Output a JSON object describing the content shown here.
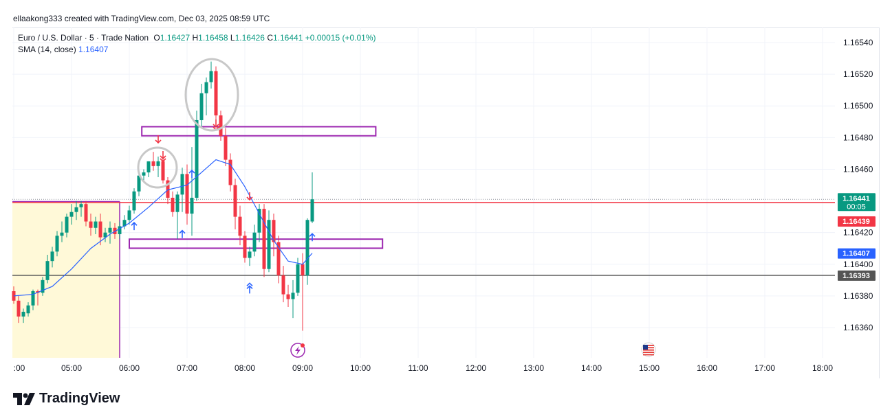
{
  "header": {
    "credit": "ellaakong333 created with TradingView.com, Dec 03, 2025 08:59 UTC"
  },
  "legend": {
    "symbol": "Euro / U.S. Dollar · 5 · Trade Nation",
    "o_label": "O",
    "o_value": "1.16427",
    "h_label": "H",
    "h_value": "1.16458",
    "l_label": "L",
    "l_value": "1.16426",
    "c_label": "C",
    "c_value": "1.16441",
    "change": "+0.00015 (+0.01%)",
    "sma_label": "SMA (14, close)",
    "sma_value": "1.16407"
  },
  "brand": {
    "name": "TradingView"
  },
  "colors": {
    "up": "#089981",
    "down": "#f23645",
    "sma": "#2962ff",
    "zone_rect": "#9c27b0",
    "highlight_fill": "#fff9d8",
    "level_red": "#f23645",
    "level_gray": "#555555",
    "circle": "#c8c8c8"
  },
  "chart_data": {
    "type": "candlestick",
    "symbol": "EURUSD",
    "timeframe": "5",
    "y_ticks": [
      "1.16540",
      "1.16520",
      "1.16500",
      "1.16480",
      "1.16460",
      "1.16420",
      "1.16400",
      "1.16380",
      "1.16360"
    ],
    "x_ticks": [
      ":00",
      "05:00",
      "06:00",
      "07:00",
      "08:00",
      "09:00",
      "10:00",
      "11:00",
      "12:00",
      "13:00",
      "14:00",
      "15:00",
      "16:00",
      "17:00",
      "18:00"
    ],
    "ylim": [
      1.1634,
      1.1656
    ],
    "price_labels": [
      {
        "value": 1.16441,
        "text": "1.16441",
        "sub": "00:05",
        "color": "#089981"
      },
      {
        "value": 1.16439,
        "text": "1.16439",
        "color": "#f23645"
      },
      {
        "value": 1.16407,
        "text": "1.16407",
        "color": "#2962ff"
      },
      {
        "value": 1.16393,
        "text": "1.16393",
        "color": "#555555"
      }
    ],
    "horizontal_lines": [
      {
        "value": 1.16439,
        "color": "#f23645"
      },
      {
        "value": 1.16393,
        "color": "#555555"
      }
    ],
    "zones": [
      {
        "from_time": "06:13",
        "to_time": "10:16",
        "low": 1.16482,
        "high": 1.16486
      },
      {
        "from_time": "06:00",
        "to_time": "10:23",
        "low": 1.16411,
        "high": 1.16415
      }
    ],
    "highlight": {
      "from_time": "03:55",
      "to_time": "05:55",
      "low": 1.1634,
      "high": 1.1644
    },
    "candles": [
      {
        "t": "04:00",
        "o": 1.16383,
        "h": 1.16386,
        "l": 1.16375,
        "c": 1.16377
      },
      {
        "t": "04:05",
        "o": 1.16377,
        "h": 1.1638,
        "l": 1.16363,
        "c": 1.16367
      },
      {
        "t": "04:10",
        "o": 1.16367,
        "h": 1.16372,
        "l": 1.16363,
        "c": 1.1637
      },
      {
        "t": "04:15",
        "o": 1.16369,
        "h": 1.16376,
        "l": 1.16367,
        "c": 1.16374
      },
      {
        "t": "04:20",
        "o": 1.16374,
        "h": 1.16384,
        "l": 1.16371,
        "c": 1.16383
      },
      {
        "t": "04:25",
        "o": 1.16383,
        "h": 1.16384,
        "l": 1.16374,
        "c": 1.16382
      },
      {
        "t": "04:30",
        "o": 1.16382,
        "h": 1.16392,
        "l": 1.1638,
        "c": 1.1639
      },
      {
        "t": "04:35",
        "o": 1.1639,
        "h": 1.16406,
        "l": 1.16388,
        "c": 1.16402
      },
      {
        "t": "04:40",
        "o": 1.16402,
        "h": 1.16411,
        "l": 1.16398,
        "c": 1.16408
      },
      {
        "t": "04:45",
        "o": 1.16408,
        "h": 1.16421,
        "l": 1.16405,
        "c": 1.16418
      },
      {
        "t": "04:50",
        "o": 1.16418,
        "h": 1.16427,
        "l": 1.16414,
        "c": 1.1642
      },
      {
        "t": "04:55",
        "o": 1.1642,
        "h": 1.16432,
        "l": 1.16417,
        "c": 1.1643
      },
      {
        "t": "05:00",
        "o": 1.1643,
        "h": 1.16438,
        "l": 1.16425,
        "c": 1.16433
      },
      {
        "t": "05:05",
        "o": 1.16433,
        "h": 1.1644,
        "l": 1.16428,
        "c": 1.16436
      },
      {
        "t": "05:10",
        "o": 1.16436,
        "h": 1.1644,
        "l": 1.1643,
        "c": 1.16438
      },
      {
        "t": "05:15",
        "o": 1.16438,
        "h": 1.1644,
        "l": 1.16424,
        "c": 1.16427
      },
      {
        "t": "05:20",
        "o": 1.16427,
        "h": 1.16432,
        "l": 1.16418,
        "c": 1.16423
      },
      {
        "t": "05:25",
        "o": 1.16423,
        "h": 1.1643,
        "l": 1.16419,
        "c": 1.16427
      },
      {
        "t": "05:30",
        "o": 1.16427,
        "h": 1.16432,
        "l": 1.16412,
        "c": 1.16417
      },
      {
        "t": "05:35",
        "o": 1.16417,
        "h": 1.16423,
        "l": 1.16414,
        "c": 1.1642
      },
      {
        "t": "05:40",
        "o": 1.1642,
        "h": 1.16427,
        "l": 1.16413,
        "c": 1.16423
      },
      {
        "t": "05:45",
        "o": 1.16423,
        "h": 1.16426,
        "l": 1.16416,
        "c": 1.16419
      },
      {
        "t": "05:50",
        "o": 1.16419,
        "h": 1.16427,
        "l": 1.16416,
        "c": 1.16424
      },
      {
        "t": "05:55",
        "o": 1.16424,
        "h": 1.16431,
        "l": 1.16422,
        "c": 1.16428
      },
      {
        "t": "06:00",
        "o": 1.16428,
        "h": 1.16437,
        "l": 1.16425,
        "c": 1.16434
      },
      {
        "t": "06:05",
        "o": 1.16434,
        "h": 1.16448,
        "l": 1.16432,
        "c": 1.16446
      },
      {
        "t": "06:10",
        "o": 1.16446,
        "h": 1.16458,
        "l": 1.16443,
        "c": 1.16456
      },
      {
        "t": "06:15",
        "o": 1.16456,
        "h": 1.1646,
        "l": 1.16452,
        "c": 1.16458
      },
      {
        "t": "06:20",
        "o": 1.16458,
        "h": 1.16465,
        "l": 1.16455,
        "c": 1.16465
      },
      {
        "t": "06:25",
        "o": 1.16465,
        "h": 1.16471,
        "l": 1.16459,
        "c": 1.16462
      },
      {
        "t": "06:30",
        "o": 1.16462,
        "h": 1.16468,
        "l": 1.16455,
        "c": 1.16465
      },
      {
        "t": "06:35",
        "o": 1.16465,
        "h": 1.1647,
        "l": 1.16451,
        "c": 1.16453
      },
      {
        "t": "06:40",
        "o": 1.16453,
        "h": 1.16455,
        "l": 1.16438,
        "c": 1.16442
      },
      {
        "t": "06:45",
        "o": 1.16442,
        "h": 1.16446,
        "l": 1.1643,
        "c": 1.16433
      },
      {
        "t": "06:50",
        "o": 1.16433,
        "h": 1.16446,
        "l": 1.16416,
        "c": 1.16444
      },
      {
        "t": "06:55",
        "o": 1.16444,
        "h": 1.16461,
        "l": 1.16433,
        "c": 1.16457
      },
      {
        "t": "07:00",
        "o": 1.16457,
        "h": 1.16463,
        "l": 1.16425,
        "c": 1.16432
      },
      {
        "t": "07:05",
        "o": 1.16432,
        "h": 1.16474,
        "l": 1.16418,
        "c": 1.16442
      },
      {
        "t": "07:10",
        "o": 1.16442,
        "h": 1.16497,
        "l": 1.1644,
        "c": 1.16491
      },
      {
        "t": "07:15",
        "o": 1.16491,
        "h": 1.16514,
        "l": 1.16487,
        "c": 1.16508
      },
      {
        "t": "07:20",
        "o": 1.16508,
        "h": 1.16518,
        "l": 1.16494,
        "c": 1.16515
      },
      {
        "t": "07:25",
        "o": 1.16515,
        "h": 1.16528,
        "l": 1.16511,
        "c": 1.16522
      },
      {
        "t": "07:30",
        "o": 1.16522,
        "h": 1.16525,
        "l": 1.1649,
        "c": 1.16494
      },
      {
        "t": "07:35",
        "o": 1.16494,
        "h": 1.16497,
        "l": 1.16478,
        "c": 1.16481
      },
      {
        "t": "07:40",
        "o": 1.16481,
        "h": 1.16486,
        "l": 1.16462,
        "c": 1.16466
      },
      {
        "t": "07:45",
        "o": 1.16466,
        "h": 1.1647,
        "l": 1.16446,
        "c": 1.1645
      },
      {
        "t": "07:50",
        "o": 1.1645,
        "h": 1.16454,
        "l": 1.16422,
        "c": 1.1643
      },
      {
        "t": "07:55",
        "o": 1.1643,
        "h": 1.16437,
        "l": 1.16412,
        "c": 1.16418
      },
      {
        "t": "08:00",
        "o": 1.16418,
        "h": 1.16421,
        "l": 1.16401,
        "c": 1.16404
      },
      {
        "t": "08:05",
        "o": 1.16404,
        "h": 1.16411,
        "l": 1.16399,
        "c": 1.16408
      },
      {
        "t": "08:10",
        "o": 1.16408,
        "h": 1.16425,
        "l": 1.16405,
        "c": 1.1642
      },
      {
        "t": "08:15",
        "o": 1.1642,
        "h": 1.16438,
        "l": 1.16414,
        "c": 1.16435
      },
      {
        "t": "08:20",
        "o": 1.16435,
        "h": 1.16438,
        "l": 1.16392,
        "c": 1.16397
      },
      {
        "t": "08:25",
        "o": 1.16397,
        "h": 1.16434,
        "l": 1.16395,
        "c": 1.16428
      },
      {
        "t": "08:30",
        "o": 1.16428,
        "h": 1.16432,
        "l": 1.16405,
        "c": 1.16414
      },
      {
        "t": "08:35",
        "o": 1.16414,
        "h": 1.16418,
        "l": 1.16388,
        "c": 1.16393
      },
      {
        "t": "08:40",
        "o": 1.16393,
        "h": 1.16399,
        "l": 1.16376,
        "c": 1.16381
      },
      {
        "t": "08:45",
        "o": 1.16381,
        "h": 1.16387,
        "l": 1.16373,
        "c": 1.16378
      },
      {
        "t": "08:50",
        "o": 1.16378,
        "h": 1.1639,
        "l": 1.16366,
        "c": 1.16382
      },
      {
        "t": "08:55",
        "o": 1.16382,
        "h": 1.16404,
        "l": 1.1638,
        "c": 1.164
      },
      {
        "t": "09:00",
        "o": 1.164,
        "h": 1.16407,
        "l": 1.16358,
        "c": 1.16393
      },
      {
        "t": "09:05",
        "o": 1.16393,
        "h": 1.16429,
        "l": 1.16387,
        "c": 1.16428
      },
      {
        "t": "09:10",
        "o": 1.16427,
        "h": 1.16458,
        "l": 1.16426,
        "c": 1.16441
      }
    ],
    "sma": {
      "name": "SMA (14, close)",
      "points": [
        {
          "t": "04:00",
          "v": 1.1638
        },
        {
          "t": "04:20",
          "v": 1.16381
        },
        {
          "t": "04:40",
          "v": 1.16386
        },
        {
          "t": "05:00",
          "v": 1.16397
        },
        {
          "t": "05:20",
          "v": 1.1641
        },
        {
          "t": "05:40",
          "v": 1.16419
        },
        {
          "t": "06:00",
          "v": 1.16426
        },
        {
          "t": "06:20",
          "v": 1.16436
        },
        {
          "t": "06:40",
          "v": 1.16447
        },
        {
          "t": "07:00",
          "v": 1.1645
        },
        {
          "t": "07:15",
          "v": 1.16458
        },
        {
          "t": "07:30",
          "v": 1.16466
        },
        {
          "t": "07:45",
          "v": 1.16463
        },
        {
          "t": "08:00",
          "v": 1.16449
        },
        {
          "t": "08:15",
          "v": 1.16432
        },
        {
          "t": "08:30",
          "v": 1.16415
        },
        {
          "t": "08:45",
          "v": 1.16402
        },
        {
          "t": "09:00",
          "v": 1.164
        },
        {
          "t": "09:10",
          "v": 1.16407
        }
      ]
    },
    "annotations": [
      {
        "type": "arrow-down",
        "t": "06:30",
        "price": 1.16478
      },
      {
        "type": "double-arrow-down",
        "t": "06:35",
        "price": 1.16468
      },
      {
        "type": "double-arrow-down",
        "t": "07:30",
        "price": 1.16488
      },
      {
        "type": "arrow-down",
        "t": "08:05",
        "price": 1.16442
      },
      {
        "type": "arrow-up",
        "t": "06:05",
        "price": 1.16425
      },
      {
        "type": "arrow-up",
        "t": "07:05",
        "price": 1.16458
      },
      {
        "type": "arrow-up",
        "t": "06:55",
        "price": 1.1642
      },
      {
        "type": "double-arrow-up",
        "t": "08:05",
        "price": 1.16385
      },
      {
        "type": "arrow-up",
        "t": "09:10",
        "price": 1.16418
      },
      {
        "type": "circle",
        "t": "06:30",
        "price": 1.16465
      },
      {
        "type": "circle",
        "t": "07:15",
        "price": 1.1651
      }
    ],
    "events": [
      {
        "icon": "lightning-event-icon",
        "t": "09:00"
      },
      {
        "icon": "us-flag-event-icon",
        "t": "15:00"
      }
    ]
  }
}
